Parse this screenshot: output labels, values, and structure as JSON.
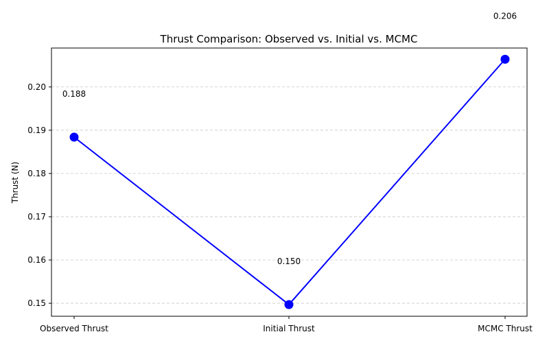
{
  "chart_data": {
    "type": "line",
    "title": "Thrust Comparison: Observed vs. Initial vs. MCMC",
    "xlabel": "",
    "ylabel": "Thrust (N)",
    "categories": [
      "Observed Thrust",
      "Initial Thrust",
      "MCMC Thrust"
    ],
    "values": [
      0.1884,
      0.1497,
      0.2064
    ],
    "data_labels": [
      "0.188",
      "0.150",
      "0.206"
    ],
    "ylim": [
      0.147,
      0.209
    ],
    "yticks": [
      0.15,
      0.16,
      0.17,
      0.18,
      0.19,
      0.2
    ],
    "ytick_labels": [
      "0.15",
      "0.16",
      "0.17",
      "0.18",
      "0.19",
      "0.20"
    ],
    "grid": "y-dashed",
    "colors": {
      "line": "#0000ff",
      "marker": "#0000ff",
      "grid": "#c8c8c8",
      "axis": "#000000"
    }
  }
}
